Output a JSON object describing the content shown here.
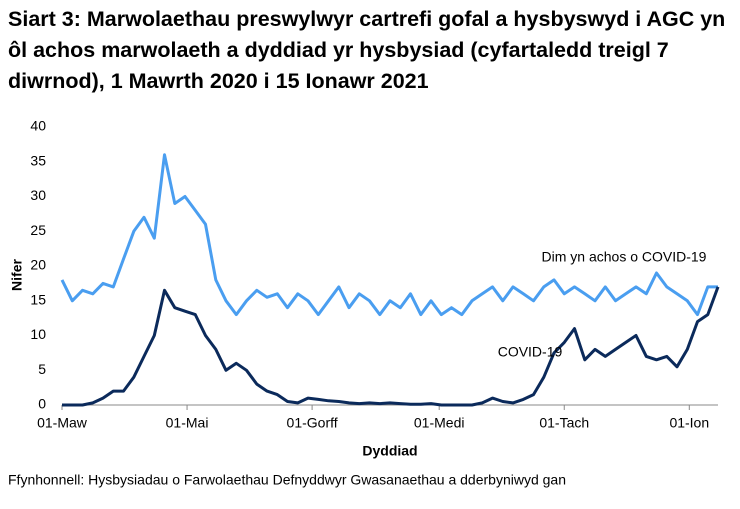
{
  "chart_data": {
    "type": "line",
    "title": "Siart 3: Marwolaethau preswylwyr cartrefi gofal a hysbyswyd i AGC yn ôl achos marwolaeth a dyddiad yr hysbysiad (cyfartaledd treigl 7 diwrnod), 1 Mawrth 2020 i 15 Ionawr 2021",
    "xlabel": "Dyddiad",
    "ylabel": "Nifer",
    "source": "Ffynhonnell: Hysbysiadau o Farwolaethau Defnyddwyr Gwasanaethau a dderbyniwyd gan",
    "x": [
      0,
      5,
      10,
      15,
      20,
      25,
      30,
      35,
      40,
      45,
      50,
      55,
      60,
      65,
      70,
      75,
      80,
      85,
      90,
      95,
      100,
      105,
      110,
      115,
      120,
      125,
      130,
      135,
      140,
      145,
      150,
      155,
      160,
      165,
      170,
      175,
      180,
      185,
      190,
      195,
      200,
      205,
      210,
      215,
      220,
      225,
      230,
      235,
      240,
      245,
      250,
      255,
      260,
      265,
      270,
      275,
      280,
      285,
      290,
      295,
      300,
      305,
      310,
      315,
      320
    ],
    "xlim": [
      0,
      320
    ],
    "xticks": [
      {
        "value": 0,
        "label": "01-Maw"
      },
      {
        "value": 61,
        "label": "01-Mai"
      },
      {
        "value": 122,
        "label": "01-Gorff"
      },
      {
        "value": 184,
        "label": "01-Medi"
      },
      {
        "value": 245,
        "label": "01-Tach"
      },
      {
        "value": 306,
        "label": "01-Ion"
      }
    ],
    "ylim": [
      0,
      40
    ],
    "yticks": [
      0,
      5,
      10,
      15,
      20,
      25,
      30,
      35,
      40
    ],
    "grid": false,
    "series": [
      {
        "name": "Dim yn achos o COVID-19",
        "color": "#4a9ef0",
        "values": [
          18,
          15,
          16.5,
          16,
          17.5,
          17,
          21,
          25,
          27,
          24,
          36,
          29,
          30,
          28,
          26,
          18,
          15,
          13,
          15,
          16.5,
          15.5,
          16,
          14,
          16,
          15,
          13,
          15,
          17,
          14,
          16,
          15,
          13,
          15,
          14,
          16,
          13,
          15,
          13,
          14,
          13,
          15,
          16,
          17,
          15,
          17,
          16,
          15,
          17,
          18,
          16,
          17,
          16,
          15,
          17,
          15,
          16,
          17,
          16,
          19,
          17,
          16,
          15,
          13,
          17,
          17
        ]
      },
      {
        "name": "COVID-19",
        "color": "#0b2a5b",
        "values": [
          0,
          0,
          0,
          0.3,
          1,
          2,
          2,
          4,
          7,
          10,
          16.5,
          14,
          13.5,
          13,
          10,
          8,
          5,
          6,
          5,
          3,
          2,
          1.5,
          0.5,
          0.3,
          1,
          0.8,
          0.6,
          0.5,
          0.3,
          0.2,
          0.3,
          0.2,
          0.3,
          0.2,
          0.1,
          0.1,
          0.2,
          0,
          0,
          0,
          0,
          0.3,
          1,
          0.5,
          0.3,
          0.8,
          1.5,
          4,
          7.5,
          9,
          11,
          6.5,
          8,
          7,
          8,
          9,
          10,
          7,
          6.5,
          7,
          5.5,
          8,
          12,
          13,
          17
        ]
      }
    ]
  }
}
